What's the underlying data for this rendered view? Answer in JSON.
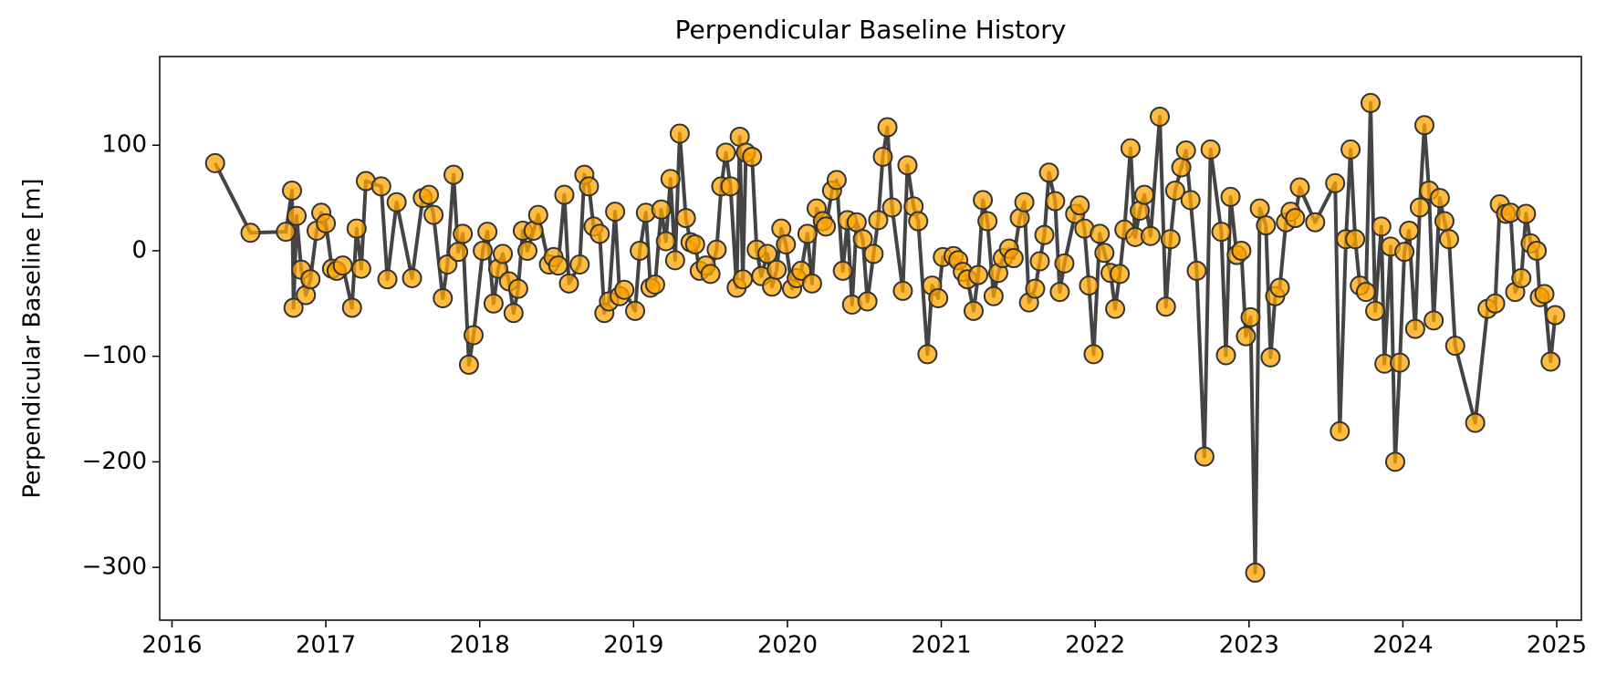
{
  "chart_data": {
    "type": "line",
    "title": "Perpendicular Baseline History",
    "ylabel": "Perpendicular Baseline [m]",
    "line_color": "#444444",
    "marker_color": "#ffa500",
    "marker_edge": "#333333",
    "xlim": [
      2015.92,
      2025.16
    ],
    "ylim": [
      -350,
      184
    ],
    "xticks": [
      2016,
      2017,
      2018,
      2019,
      2020,
      2021,
      2022,
      2023,
      2024,
      2025
    ],
    "yticks": [
      {
        "value": -300,
        "label": "−300"
      },
      {
        "value": -200,
        "label": "−200"
      },
      {
        "value": -100,
        "label": "−100"
      },
      0,
      100
    ],
    "x": [
      2016.28,
      2016.51,
      2016.74,
      2016.78,
      2016.79,
      2016.81,
      2016.84,
      2016.87,
      2016.9,
      2016.94,
      2016.97,
      2017.0,
      2017.04,
      2017.07,
      2017.11,
      2017.17,
      2017.2,
      2017.23,
      2017.26,
      2017.36,
      2017.4,
      2017.46,
      2017.56,
      2017.63,
      2017.67,
      2017.7,
      2017.76,
      2017.79,
      2017.83,
      2017.86,
      2017.89,
      2017.93,
      2017.96,
      2018.02,
      2018.05,
      2018.09,
      2018.12,
      2018.15,
      2018.19,
      2018.22,
      2018.25,
      2018.28,
      2018.31,
      2018.35,
      2018.38,
      2018.45,
      2018.48,
      2018.51,
      2018.55,
      2018.58,
      2018.65,
      2018.68,
      2018.71,
      2018.74,
      2018.78,
      2018.81,
      2018.84,
      2018.88,
      2018.91,
      2018.94,
      2019.01,
      2019.04,
      2019.08,
      2019.11,
      2019.14,
      2019.18,
      2019.21,
      2019.24,
      2019.27,
      2019.3,
      2019.34,
      2019.37,
      2019.4,
      2019.43,
      2019.47,
      2019.5,
      2019.54,
      2019.57,
      2019.6,
      2019.63,
      2019.67,
      2019.69,
      2019.71,
      2019.73,
      2019.77,
      2019.8,
      2019.83,
      2019.87,
      2019.9,
      2019.93,
      2019.96,
      2019.99,
      2020.03,
      2020.06,
      2020.09,
      2020.13,
      2020.16,
      2020.19,
      2020.23,
      2020.25,
      2020.29,
      2020.32,
      2020.36,
      2020.39,
      2020.42,
      2020.45,
      2020.49,
      2020.52,
      2020.56,
      2020.59,
      2020.62,
      2020.65,
      2020.68,
      2020.75,
      2020.78,
      2020.82,
      2020.85,
      2020.91,
      2020.94,
      2020.98,
      2021.01,
      2021.08,
      2021.11,
      2021.14,
      2021.17,
      2021.21,
      2021.24,
      2021.27,
      2021.3,
      2021.34,
      2021.37,
      2021.4,
      2021.44,
      2021.47,
      2021.51,
      2021.54,
      2021.57,
      2021.61,
      2021.64,
      2021.67,
      2021.7,
      2021.74,
      2021.77,
      2021.8,
      2021.87,
      2021.9,
      2021.93,
      2021.96,
      2021.99,
      2022.03,
      2022.06,
      2022.1,
      2022.13,
      2022.16,
      2022.19,
      2022.23,
      2022.26,
      2022.29,
      2022.32,
      2022.36,
      2022.42,
      2022.46,
      2022.49,
      2022.52,
      2022.56,
      2022.59,
      2022.62,
      2022.66,
      2022.71,
      2022.75,
      2022.82,
      2022.85,
      2022.88,
      2022.92,
      2022.95,
      2022.98,
      2023.01,
      2023.04,
      2023.07,
      2023.11,
      2023.14,
      2023.17,
      2023.2,
      2023.24,
      2023.27,
      2023.3,
      2023.33,
      2023.43,
      2023.56,
      2023.59,
      2023.63,
      2023.66,
      2023.69,
      2023.72,
      2023.76,
      2023.79,
      2023.82,
      2023.86,
      2023.88,
      2023.92,
      2023.95,
      2023.98,
      2024.01,
      2024.04,
      2024.08,
      2024.11,
      2024.14,
      2024.17,
      2024.2,
      2024.24,
      2024.27,
      2024.3,
      2024.34,
      2024.47,
      2024.55,
      2024.6,
      2024.63,
      2024.67,
      2024.7,
      2024.73,
      2024.77,
      2024.8,
      2024.83,
      2024.87,
      2024.89,
      2024.92,
      2024.96,
      2024.99
    ],
    "values": [
      83,
      17,
      18,
      57,
      -54,
      33,
      -18,
      -42,
      -27,
      19,
      36,
      26,
      -17,
      -19,
      -14,
      -54,
      21,
      -17,
      66,
      61,
      -27,
      46,
      -26,
      50,
      53,
      34,
      -45,
      -13,
      72,
      -1,
      16,
      -108,
      -80,
      0,
      18,
      -50,
      -17,
      -3,
      -29,
      -59,
      -36,
      19,
      0,
      19,
      34,
      -13,
      -6,
      -14,
      53,
      -31,
      -13,
      72,
      61,
      23,
      16,
      -59,
      -48,
      37,
      -43,
      -37,
      -57,
      0,
      36,
      -35,
      -32,
      39,
      9,
      68,
      -9,
      111,
      31,
      8,
      6,
      -19,
      -14,
      -22,
      1,
      61,
      93,
      61,
      -35,
      108,
      -27,
      93,
      89,
      1,
      -24,
      -3,
      -34,
      -18,
      21,
      6,
      -36,
      -26,
      -19,
      16,
      -31,
      40,
      28,
      23,
      57,
      67,
      -19,
      29,
      -51,
      27,
      11,
      -48,
      -3,
      29,
      89,
      117,
      41,
      -38,
      81,
      42,
      28,
      -98,
      -33,
      -45,
      -6,
      -5,
      -9,
      -20,
      -27,
      -57,
      -23,
      48,
      28,
      -43,
      -21,
      -7,
      2,
      -7,
      31,
      46,
      -49,
      -36,
      -10,
      15,
      74,
      47,
      -39,
      -12,
      35,
      43,
      21,
      -33,
      -98,
      16,
      -2,
      -21,
      -55,
      -22,
      20,
      97,
      13,
      38,
      53,
      14,
      127,
      -53,
      11,
      57,
      79,
      95,
      48,
      -19,
      -195,
      96,
      18,
      -99,
      51,
      -4,
      0,
      -81,
      -63,
      -305,
      40,
      24,
      -101,
      -43,
      -35,
      27,
      37,
      31,
      60,
      27,
      64,
      -171,
      11,
      96,
      11,
      -33,
      -39,
      140,
      -57,
      23,
      -107,
      4,
      -200,
      -106,
      -1,
      19,
      -74,
      41,
      119,
      57,
      -66,
      50,
      28,
      11,
      -90,
      -163,
      -55,
      -50,
      44,
      35,
      36,
      -39,
      -26,
      35,
      7,
      0,
      -44,
      -41,
      -105,
      -61
    ]
  }
}
